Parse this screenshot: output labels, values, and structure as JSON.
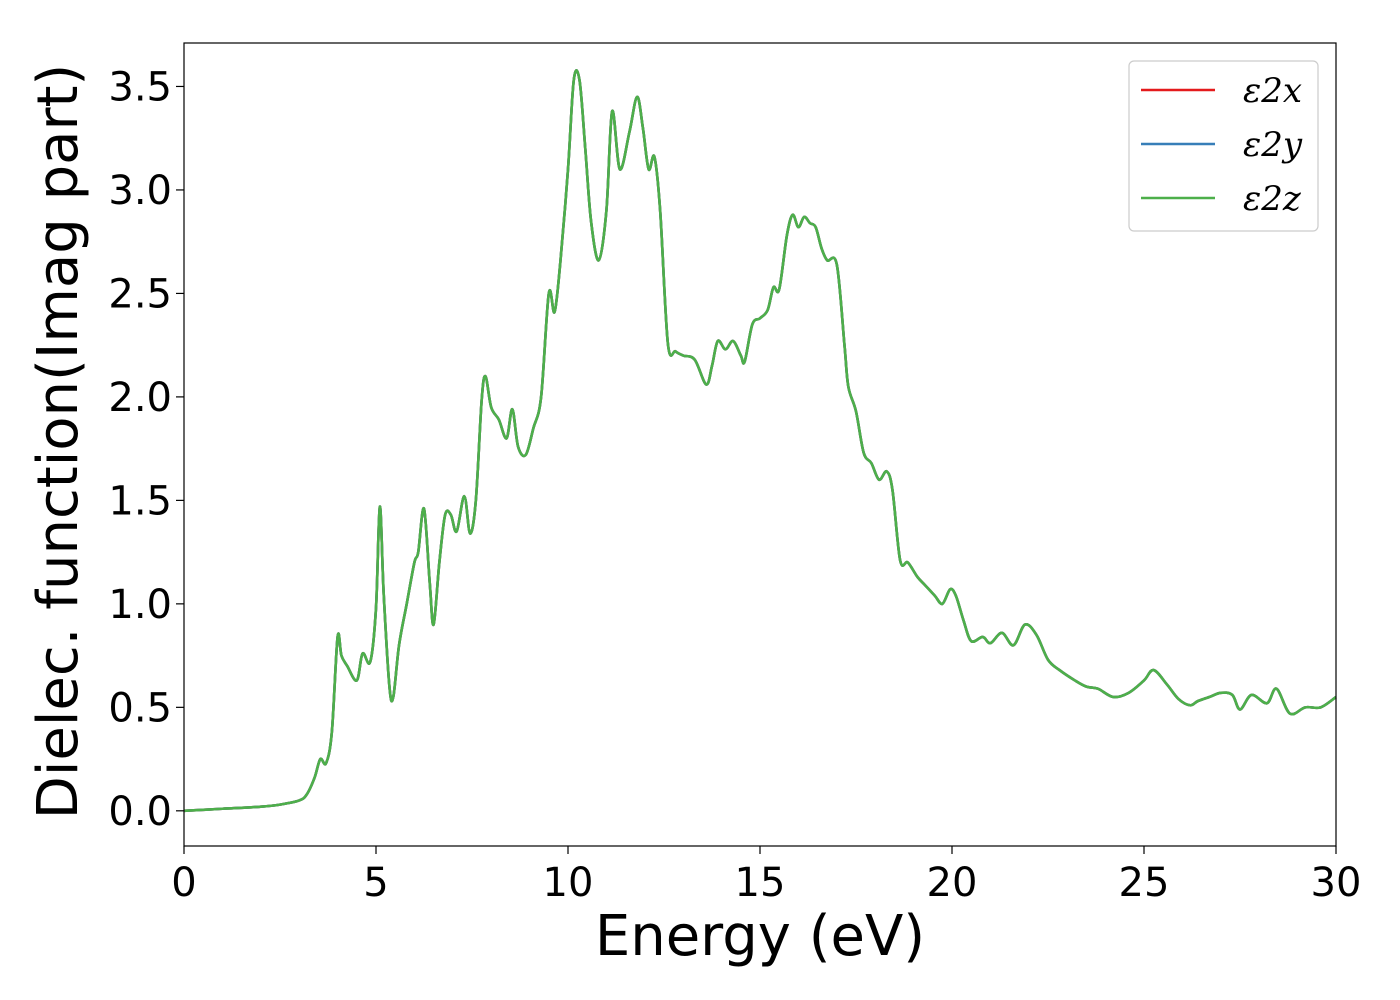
{
  "chart_data": {
    "type": "line",
    "xlabel": "Energy (eV)",
    "ylabel": "Dielec. function(Imag part)",
    "xlim": [
      0,
      30
    ],
    "ylim": [
      -0.17,
      3.71
    ],
    "xticks": [
      0,
      5,
      10,
      15,
      20,
      25,
      30
    ],
    "xtick_labels": [
      "0",
      "5",
      "10",
      "15",
      "20",
      "25",
      "30"
    ],
    "yticks": [
      0.0,
      0.5,
      1.0,
      1.5,
      2.0,
      2.5,
      3.0,
      3.5
    ],
    "ytick_labels": [
      "0.0",
      "0.5",
      "1.0",
      "1.5",
      "2.0",
      "2.5",
      "3.0",
      "3.5"
    ],
    "grid": false,
    "legend_position": "top-right",
    "series": [
      {
        "name": "ε2x",
        "color": "#e41a1c",
        "x": [
          0,
          1,
          2,
          2.5,
          3,
          3.2,
          3.4,
          3.55,
          3.7,
          3.85,
          4.0,
          4.1,
          4.25,
          4.5,
          4.65,
          4.85,
          5.0,
          5.1,
          5.2,
          5.35,
          5.45,
          5.6,
          5.8,
          6.0,
          6.1,
          6.25,
          6.4,
          6.5,
          6.65,
          6.8,
          6.95,
          7.1,
          7.3,
          7.45,
          7.6,
          7.75,
          7.85,
          8.0,
          8.2,
          8.4,
          8.55,
          8.7,
          8.9,
          9.1,
          9.3,
          9.5,
          9.65,
          9.8,
          10.0,
          10.15,
          10.3,
          10.45,
          10.6,
          10.8,
          11.0,
          11.15,
          11.35,
          11.6,
          11.8,
          11.95,
          12.1,
          12.25,
          12.4,
          12.6,
          12.8,
          13.0,
          13.3,
          13.6,
          13.75,
          13.9,
          14.1,
          14.3,
          14.5,
          14.6,
          14.8,
          15.0,
          15.2,
          15.35,
          15.5,
          15.7,
          15.85,
          16.0,
          16.15,
          16.3,
          16.45,
          16.6,
          16.75,
          17.0,
          17.2,
          17.3,
          17.5,
          17.7,
          17.9,
          18.1,
          18.3,
          18.45,
          18.65,
          18.85,
          19.1,
          19.3,
          19.55,
          19.75,
          19.95,
          20.1,
          20.3,
          20.5,
          20.8,
          21.0,
          21.3,
          21.6,
          21.9,
          22.2,
          22.5,
          22.8,
          23.2,
          23.5,
          23.8,
          24.2,
          24.6,
          25.0,
          25.25,
          25.6,
          25.9,
          26.2,
          26.4,
          26.7,
          27.0,
          27.3,
          27.5,
          27.8,
          28.2,
          28.45,
          28.8,
          29.2,
          29.6,
          30.0
        ],
        "y": [
          0.0,
          0.01,
          0.02,
          0.03,
          0.05,
          0.08,
          0.16,
          0.25,
          0.23,
          0.38,
          0.84,
          0.75,
          0.7,
          0.63,
          0.76,
          0.72,
          0.98,
          1.47,
          1.05,
          0.6,
          0.55,
          0.8,
          1.0,
          1.2,
          1.25,
          1.46,
          1.1,
          0.9,
          1.2,
          1.43,
          1.43,
          1.35,
          1.52,
          1.34,
          1.5,
          1.98,
          2.1,
          1.95,
          1.89,
          1.8,
          1.94,
          1.76,
          1.72,
          1.85,
          2.0,
          2.5,
          2.41,
          2.65,
          3.1,
          3.53,
          3.53,
          3.2,
          2.85,
          2.66,
          2.9,
          3.38,
          3.1,
          3.28,
          3.45,
          3.3,
          3.1,
          3.16,
          2.9,
          2.26,
          2.22,
          2.2,
          2.18,
          2.06,
          2.15,
          2.27,
          2.23,
          2.27,
          2.2,
          2.17,
          2.35,
          2.38,
          2.42,
          2.53,
          2.52,
          2.78,
          2.88,
          2.82,
          2.87,
          2.84,
          2.82,
          2.72,
          2.66,
          2.64,
          2.25,
          2.05,
          1.93,
          1.73,
          1.68,
          1.6,
          1.64,
          1.55,
          1.21,
          1.2,
          1.13,
          1.09,
          1.04,
          1.0,
          1.07,
          1.04,
          0.92,
          0.82,
          0.84,
          0.81,
          0.86,
          0.8,
          0.9,
          0.85,
          0.73,
          0.68,
          0.63,
          0.6,
          0.59,
          0.55,
          0.57,
          0.63,
          0.68,
          0.61,
          0.54,
          0.51,
          0.53,
          0.55,
          0.57,
          0.56,
          0.49,
          0.56,
          0.52,
          0.59,
          0.47,
          0.5,
          0.5,
          0.55
        ]
      },
      {
        "name": "ε2y",
        "color": "#377eb8",
        "x": [
          0,
          1,
          2,
          2.5,
          3,
          3.2,
          3.4,
          3.55,
          3.7,
          3.85,
          4.0,
          4.1,
          4.25,
          4.5,
          4.65,
          4.85,
          5.0,
          5.1,
          5.2,
          5.35,
          5.45,
          5.6,
          5.8,
          6.0,
          6.1,
          6.25,
          6.4,
          6.5,
          6.65,
          6.8,
          6.95,
          7.1,
          7.3,
          7.45,
          7.6,
          7.75,
          7.85,
          8.0,
          8.2,
          8.4,
          8.55,
          8.7,
          8.9,
          9.1,
          9.3,
          9.5,
          9.65,
          9.8,
          10.0,
          10.15,
          10.3,
          10.45,
          10.6,
          10.8,
          11.0,
          11.15,
          11.35,
          11.6,
          11.8,
          11.95,
          12.1,
          12.25,
          12.4,
          12.6,
          12.8,
          13.0,
          13.3,
          13.6,
          13.75,
          13.9,
          14.1,
          14.3,
          14.5,
          14.6,
          14.8,
          15.0,
          15.2,
          15.35,
          15.5,
          15.7,
          15.85,
          16.0,
          16.15,
          16.3,
          16.45,
          16.6,
          16.75,
          17.0,
          17.2,
          17.3,
          17.5,
          17.7,
          17.9,
          18.1,
          18.3,
          18.45,
          18.65,
          18.85,
          19.1,
          19.3,
          19.55,
          19.75,
          19.95,
          20.1,
          20.3,
          20.5,
          20.8,
          21.0,
          21.3,
          21.6,
          21.9,
          22.2,
          22.5,
          22.8,
          23.2,
          23.5,
          23.8,
          24.2,
          24.6,
          25.0,
          25.25,
          25.6,
          25.9,
          26.2,
          26.4,
          26.7,
          27.0,
          27.3,
          27.5,
          27.8,
          28.2,
          28.45,
          28.8,
          29.2,
          29.6,
          30.0
        ],
        "y": [
          0.0,
          0.01,
          0.02,
          0.03,
          0.05,
          0.08,
          0.16,
          0.25,
          0.23,
          0.38,
          0.84,
          0.75,
          0.7,
          0.63,
          0.76,
          0.72,
          0.98,
          1.47,
          1.05,
          0.6,
          0.55,
          0.8,
          1.0,
          1.2,
          1.25,
          1.46,
          1.1,
          0.9,
          1.2,
          1.43,
          1.43,
          1.35,
          1.52,
          1.34,
          1.5,
          1.98,
          2.1,
          1.95,
          1.89,
          1.8,
          1.94,
          1.76,
          1.72,
          1.85,
          2.0,
          2.5,
          2.41,
          2.65,
          3.1,
          3.53,
          3.53,
          3.2,
          2.85,
          2.66,
          2.9,
          3.38,
          3.1,
          3.28,
          3.45,
          3.3,
          3.1,
          3.16,
          2.9,
          2.26,
          2.22,
          2.2,
          2.18,
          2.06,
          2.15,
          2.27,
          2.23,
          2.27,
          2.2,
          2.17,
          2.35,
          2.38,
          2.42,
          2.53,
          2.52,
          2.78,
          2.88,
          2.82,
          2.87,
          2.84,
          2.82,
          2.72,
          2.66,
          2.64,
          2.25,
          2.05,
          1.93,
          1.73,
          1.68,
          1.6,
          1.64,
          1.55,
          1.21,
          1.2,
          1.13,
          1.09,
          1.04,
          1.0,
          1.07,
          1.04,
          0.92,
          0.82,
          0.84,
          0.81,
          0.86,
          0.8,
          0.9,
          0.85,
          0.73,
          0.68,
          0.63,
          0.6,
          0.59,
          0.55,
          0.57,
          0.63,
          0.68,
          0.61,
          0.54,
          0.51,
          0.53,
          0.55,
          0.57,
          0.56,
          0.49,
          0.56,
          0.52,
          0.59,
          0.47,
          0.5,
          0.5,
          0.55
        ]
      },
      {
        "name": "ε2z",
        "color": "#4daf4a",
        "x": [
          0,
          1,
          2,
          2.5,
          3,
          3.2,
          3.4,
          3.55,
          3.7,
          3.85,
          4.0,
          4.1,
          4.25,
          4.5,
          4.65,
          4.85,
          5.0,
          5.1,
          5.2,
          5.35,
          5.45,
          5.6,
          5.8,
          6.0,
          6.1,
          6.25,
          6.4,
          6.5,
          6.65,
          6.8,
          6.95,
          7.1,
          7.3,
          7.45,
          7.6,
          7.75,
          7.85,
          8.0,
          8.2,
          8.4,
          8.55,
          8.7,
          8.9,
          9.1,
          9.3,
          9.5,
          9.65,
          9.8,
          10.0,
          10.15,
          10.3,
          10.45,
          10.6,
          10.8,
          11.0,
          11.15,
          11.35,
          11.6,
          11.8,
          11.95,
          12.1,
          12.25,
          12.4,
          12.6,
          12.8,
          13.0,
          13.3,
          13.6,
          13.75,
          13.9,
          14.1,
          14.3,
          14.5,
          14.6,
          14.8,
          15.0,
          15.2,
          15.35,
          15.5,
          15.7,
          15.85,
          16.0,
          16.15,
          16.3,
          16.45,
          16.6,
          16.75,
          17.0,
          17.2,
          17.3,
          17.5,
          17.7,
          17.9,
          18.1,
          18.3,
          18.45,
          18.65,
          18.85,
          19.1,
          19.3,
          19.55,
          19.75,
          19.95,
          20.1,
          20.3,
          20.5,
          20.8,
          21.0,
          21.3,
          21.6,
          21.9,
          22.2,
          22.5,
          22.8,
          23.2,
          23.5,
          23.8,
          24.2,
          24.6,
          25.0,
          25.25,
          25.6,
          25.9,
          26.2,
          26.4,
          26.7,
          27.0,
          27.3,
          27.5,
          27.8,
          28.2,
          28.45,
          28.8,
          29.2,
          29.6,
          30.0
        ],
        "y": [
          0.0,
          0.01,
          0.02,
          0.03,
          0.05,
          0.08,
          0.16,
          0.25,
          0.23,
          0.38,
          0.84,
          0.75,
          0.7,
          0.63,
          0.76,
          0.72,
          0.98,
          1.47,
          1.05,
          0.6,
          0.55,
          0.8,
          1.0,
          1.2,
          1.25,
          1.46,
          1.1,
          0.9,
          1.2,
          1.43,
          1.43,
          1.35,
          1.52,
          1.34,
          1.5,
          1.98,
          2.1,
          1.95,
          1.89,
          1.8,
          1.94,
          1.76,
          1.72,
          1.85,
          2.0,
          2.5,
          2.41,
          2.65,
          3.1,
          3.53,
          3.53,
          3.2,
          2.85,
          2.66,
          2.9,
          3.38,
          3.1,
          3.28,
          3.45,
          3.3,
          3.1,
          3.16,
          2.9,
          2.26,
          2.22,
          2.2,
          2.18,
          2.06,
          2.15,
          2.27,
          2.23,
          2.27,
          2.2,
          2.17,
          2.35,
          2.38,
          2.42,
          2.53,
          2.52,
          2.78,
          2.88,
          2.82,
          2.87,
          2.84,
          2.82,
          2.72,
          2.66,
          2.64,
          2.25,
          2.05,
          1.93,
          1.73,
          1.68,
          1.6,
          1.64,
          1.55,
          1.21,
          1.2,
          1.13,
          1.09,
          1.04,
          1.0,
          1.07,
          1.04,
          0.92,
          0.82,
          0.84,
          0.81,
          0.86,
          0.8,
          0.9,
          0.85,
          0.73,
          0.68,
          0.63,
          0.6,
          0.59,
          0.55,
          0.57,
          0.63,
          0.68,
          0.61,
          0.54,
          0.51,
          0.53,
          0.55,
          0.57,
          0.56,
          0.49,
          0.56,
          0.52,
          0.59,
          0.47,
          0.5,
          0.5,
          0.55
        ]
      }
    ]
  }
}
